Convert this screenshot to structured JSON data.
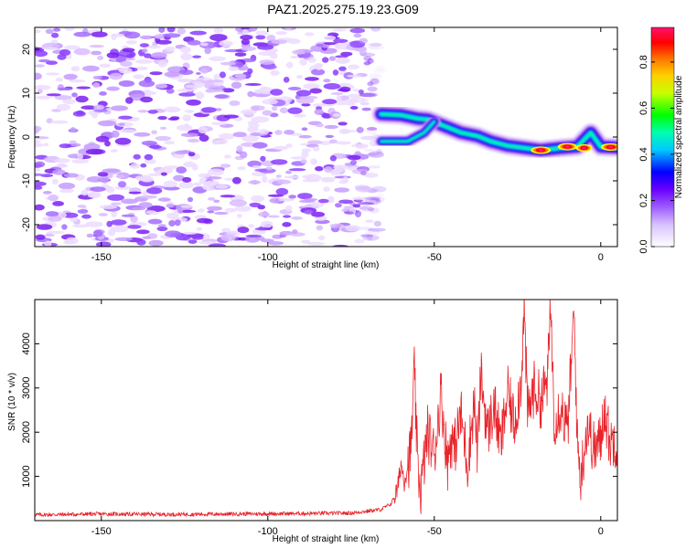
{
  "title": "PAZ1.2025.275.19.23.G09",
  "chart_data": [
    {
      "type": "heatmap",
      "xlabel": "Height of straight line (km)",
      "ylabel": "Frequency (Hz)",
      "xlim": [
        -170,
        5
      ],
      "ylim": [
        -25,
        25
      ],
      "xticks": [
        -150,
        -100,
        -50,
        0
      ],
      "yticks": [
        -20,
        -10,
        0,
        10,
        20
      ],
      "colorbar": {
        "label": "Normalized spectral amplitude",
        "range": [
          0,
          0.95
        ],
        "ticks": [
          0.0,
          0.2,
          0.4,
          0.6,
          0.8
        ],
        "colormap": [
          "#ffffff",
          "#c7a3ff",
          "#8a2be2",
          "#0000ff",
          "#00ffff",
          "#00ff00",
          "#ffff00",
          "#ff7f00",
          "#ff0000",
          "#ff1493"
        ]
      },
      "noise_region_x": [
        -170,
        -66
      ],
      "ridge": [
        {
          "x": -66,
          "y": 5.2
        },
        {
          "x": -60,
          "y": 5.0
        },
        {
          "x": -55,
          "y": 4.2
        },
        {
          "x": -52,
          "y": 4.0
        },
        {
          "x": -47,
          "y": 2.5
        },
        {
          "x": -42,
          "y": 1.0
        },
        {
          "x": -37,
          "y": 0.2
        },
        {
          "x": -33,
          "y": -1.0
        },
        {
          "x": -28,
          "y": -2.0
        },
        {
          "x": -23,
          "y": -2.5
        },
        {
          "x": -18,
          "y": -3.0
        },
        {
          "x": -12,
          "y": -2.5
        },
        {
          "x": -7,
          "y": -2.2
        },
        {
          "x": -3,
          "y": 1.0
        },
        {
          "x": 0,
          "y": -2.2
        },
        {
          "x": 5,
          "y": -2.4
        }
      ],
      "branch": [
        {
          "x": -66,
          "y": -1.0
        },
        {
          "x": -58,
          "y": -1.0
        },
        {
          "x": -53,
          "y": 1.0
        },
        {
          "x": -50,
          "y": 3.5
        }
      ],
      "peaks": [
        {
          "x": -18,
          "y": -3.0,
          "amp": 0.92
        },
        {
          "x": -10,
          "y": -2.2,
          "amp": 0.88
        },
        {
          "x": -5,
          "y": -2.5,
          "amp": 0.75
        },
        {
          "x": 3,
          "y": -2.3,
          "amp": 0.9
        }
      ]
    },
    {
      "type": "line",
      "xlabel": "Height of straight line (km)",
      "ylabel": "SNR (10 * v/v)",
      "xlim": [
        -170,
        5
      ],
      "ylim": [
        0,
        5000
      ],
      "xticks": [
        -150,
        -100,
        -50,
        0
      ],
      "yticks": [
        1000,
        2000,
        3000,
        4000
      ],
      "color": "#e8232a",
      "series": [
        {
          "name": "SNR",
          "x": [
            -170,
            -150,
            -130,
            -110,
            -90,
            -75,
            -66,
            -63,
            -61,
            -60,
            -59,
            -57,
            -56,
            -55,
            -54,
            -52,
            -50,
            -48,
            -46,
            -45,
            -44,
            -42,
            -40,
            -38,
            -37,
            -36,
            -34,
            -32,
            -30,
            -28,
            -26,
            -24,
            -23,
            -22,
            -20,
            -18,
            -16,
            -15,
            -14,
            -12,
            -10,
            -8,
            -7,
            -6,
            -4,
            -2,
            0,
            1,
            2,
            3,
            4,
            5
          ],
          "y": [
            130,
            150,
            140,
            150,
            160,
            170,
            250,
            380,
            700,
            1300,
            900,
            1600,
            3350,
            1200,
            700,
            2000,
            1500,
            2900,
            1300,
            1900,
            1600,
            2400,
            1300,
            2700,
            1500,
            3300,
            2000,
            2600,
            1700,
            2900,
            2200,
            3100,
            4800,
            2400,
            3000,
            2700,
            3200,
            4900,
            2300,
            2600,
            2000,
            4700,
            1700,
            1000,
            2200,
            1600,
            1800,
            2600,
            2100,
            1700,
            1900,
            1700
          ]
        }
      ]
    }
  ]
}
